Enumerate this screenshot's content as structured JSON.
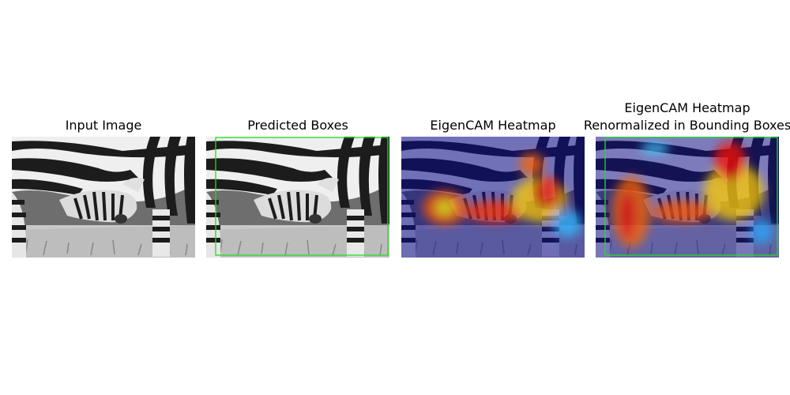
{
  "panels": [
    {
      "title": "Input Image",
      "content": "grayscale photo of zebras; a foal nursing under an adult zebra"
    },
    {
      "title": "Predicted Boxes",
      "content": "same photo with a green detection box"
    },
    {
      "title": "EigenCAM Heatmap",
      "content": "photo overlaid with jet-colormap heatmap"
    },
    {
      "title_lines": [
        "EigenCAM Heatmap",
        "Renormalized in Bounding Boxes"
      ],
      "content": "heatmap renormalized inside the green box"
    }
  ],
  "colors": {
    "box": "#22dd22",
    "heat_low": "#00008b",
    "heat_high": "#ff0000"
  }
}
